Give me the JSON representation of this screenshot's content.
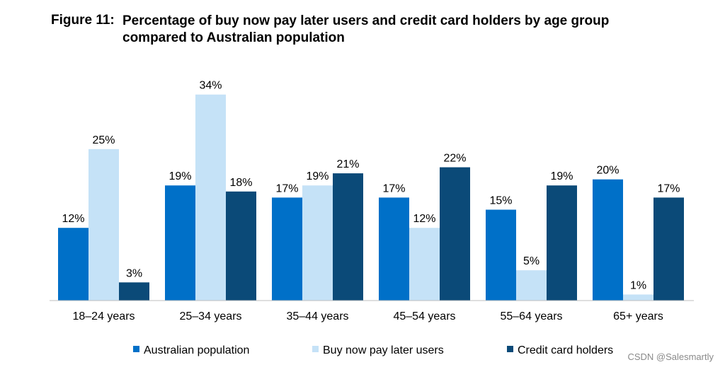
{
  "figure": {
    "label": "Figure 11:",
    "title": "Percentage of buy now pay later users and credit card holders by age group compared to Australian population"
  },
  "watermark": "CSDN @Salesmartly",
  "chart_data": {
    "type": "bar",
    "title": "Percentage of buy now pay later users and credit card holders by age group compared to Australian population",
    "categories": [
      "18–24 years",
      "25–34 years",
      "35–44 years",
      "45–54 years",
      "55–64 years",
      "65+ years"
    ],
    "series": [
      {
        "name": "Australian population",
        "color": "#0070c8",
        "values": [
          12,
          19,
          17,
          17,
          15,
          20
        ],
        "labels": [
          "12%",
          "19%",
          "17%",
          "17%",
          "15%",
          "20%"
        ]
      },
      {
        "name": "Buy now pay later users",
        "color": "#c5e2f7",
        "values": [
          25,
          34,
          19,
          12,
          5,
          1
        ],
        "labels": [
          "25%",
          "34%",
          "19%",
          "12%",
          "5%",
          "1%"
        ]
      },
      {
        "name": "Credit card holders",
        "color": "#0b4a78",
        "values": [
          3,
          18,
          21,
          22,
          19,
          17
        ],
        "labels": [
          "3%",
          "18%",
          "21%",
          "22%",
          "19%",
          "17%"
        ]
      }
    ],
    "ylim": [
      0,
      37
    ],
    "grid": false,
    "legend_position": "bottom"
  }
}
